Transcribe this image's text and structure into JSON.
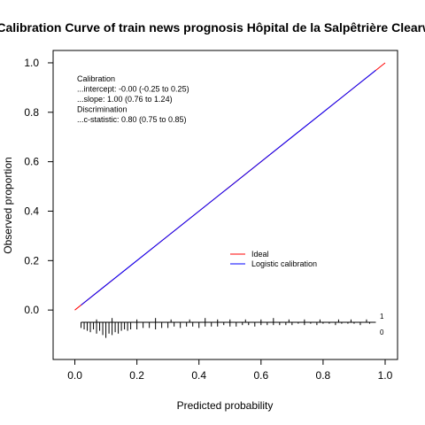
{
  "chart_data": {
    "type": "line",
    "title": "Calibration Curve of train news prognosis Hôpital de la Salpêtrière Clearwater",
    "xlabel": "Predicted probability",
    "ylabel": "Observed proportion",
    "xlim": [
      -0.07,
      1.04
    ],
    "ylim": [
      -0.2,
      1.05
    ],
    "x_ticks": [
      "0.0",
      "0.2",
      "0.4",
      "0.6",
      "0.8",
      "1.0"
    ],
    "y_ticks": [
      "0.0",
      "0.2",
      "0.4",
      "0.6",
      "0.8",
      "1.0"
    ],
    "annotations": [
      "Calibration",
      "...intercept: -0.00 (-0.25 to 0.25)",
      "...slope: 1.00 (0.76 to 1.24)",
      "Discrimination",
      "...c-statistic: 0.80 (0.75 to 0.85)"
    ],
    "legend_position": "center-right",
    "series": [
      {
        "name": "Ideal",
        "color": "#ff0000",
        "x": [
          0,
          1
        ],
        "y": [
          0,
          1
        ]
      },
      {
        "name": "Logistic calibration",
        "color": "#0000ff",
        "x": [
          0.02,
          0.1,
          0.2,
          0.3,
          0.4,
          0.5,
          0.6,
          0.7,
          0.8,
          0.9,
          0.97
        ],
        "y": [
          0.02,
          0.1,
          0.2,
          0.3,
          0.4,
          0.5,
          0.6,
          0.7,
          0.8,
          0.9,
          0.97
        ]
      }
    ],
    "rug_labels": [
      "1",
      "0"
    ],
    "rug_events": [
      [
        0.07,
        0.02
      ],
      [
        0.12,
        0.03
      ],
      [
        0.2,
        0.02
      ],
      [
        0.26,
        0.03
      ],
      [
        0.31,
        0.02
      ],
      [
        0.37,
        0.02
      ],
      [
        0.42,
        0.03
      ],
      [
        0.46,
        0.02
      ],
      [
        0.5,
        0.02
      ],
      [
        0.55,
        0.02
      ],
      [
        0.6,
        0.02
      ],
      [
        0.64,
        0.03
      ],
      [
        0.69,
        0.02
      ],
      [
        0.74,
        0.02
      ],
      [
        0.79,
        0.02
      ],
      [
        0.85,
        0.02
      ],
      [
        0.89,
        0.02
      ],
      [
        0.94,
        0.02
      ]
    ],
    "rug_nonevents": [
      [
        0.02,
        0.04
      ],
      [
        0.03,
        0.05
      ],
      [
        0.04,
        0.06
      ],
      [
        0.05,
        0.07
      ],
      [
        0.06,
        0.05
      ],
      [
        0.07,
        0.08
      ],
      [
        0.08,
        0.06
      ],
      [
        0.09,
        0.09
      ],
      [
        0.1,
        0.11
      ],
      [
        0.11,
        0.08
      ],
      [
        0.12,
        0.09
      ],
      [
        0.13,
        0.07
      ],
      [
        0.14,
        0.08
      ],
      [
        0.15,
        0.06
      ],
      [
        0.16,
        0.05
      ],
      [
        0.17,
        0.06
      ],
      [
        0.18,
        0.05
      ],
      [
        0.2,
        0.05
      ],
      [
        0.22,
        0.04
      ],
      [
        0.24,
        0.04
      ],
      [
        0.26,
        0.05
      ],
      [
        0.28,
        0.04
      ],
      [
        0.3,
        0.04
      ],
      [
        0.32,
        0.03
      ],
      [
        0.34,
        0.04
      ],
      [
        0.36,
        0.03
      ],
      [
        0.38,
        0.03
      ],
      [
        0.4,
        0.04
      ],
      [
        0.42,
        0.03
      ],
      [
        0.44,
        0.03
      ],
      [
        0.46,
        0.03
      ],
      [
        0.48,
        0.02
      ],
      [
        0.5,
        0.03
      ],
      [
        0.52,
        0.03
      ],
      [
        0.54,
        0.02
      ],
      [
        0.56,
        0.02
      ],
      [
        0.58,
        0.03
      ],
      [
        0.6,
        0.02
      ],
      [
        0.62,
        0.02
      ],
      [
        0.64,
        0.02
      ],
      [
        0.66,
        0.02
      ],
      [
        0.68,
        0.02
      ],
      [
        0.7,
        0.02
      ],
      [
        0.72,
        0.01
      ],
      [
        0.74,
        0.02
      ],
      [
        0.76,
        0.01
      ],
      [
        0.78,
        0.02
      ],
      [
        0.8,
        0.01
      ],
      [
        0.82,
        0.01
      ],
      [
        0.84,
        0.02
      ],
      [
        0.86,
        0.01
      ],
      [
        0.88,
        0.01
      ],
      [
        0.9,
        0.01
      ],
      [
        0.92,
        0.02
      ],
      [
        0.95,
        0.01
      ]
    ]
  }
}
